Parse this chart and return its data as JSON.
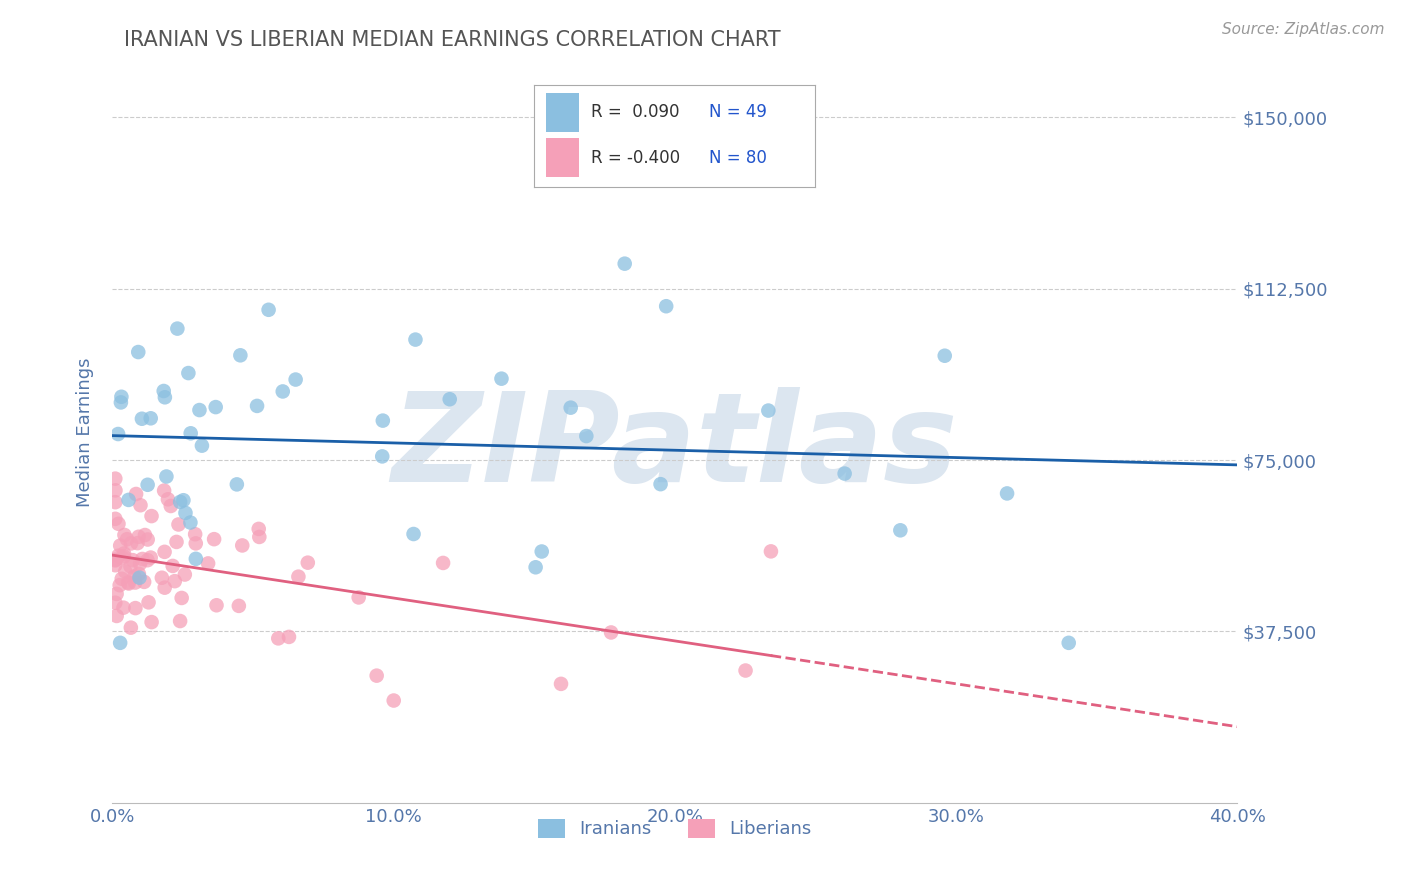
{
  "title": "IRANIAN VS LIBERIAN MEDIAN EARNINGS CORRELATION CHART",
  "source": "Source: ZipAtlas.com",
  "ylabel": "Median Earnings",
  "xlim": [
    0.0,
    0.4
  ],
  "ylim": [
    0,
    162000
  ],
  "yticks": [
    37500,
    75000,
    112500,
    150000
  ],
  "ytick_labels": [
    "$37,500",
    "$75,000",
    "$112,500",
    "$150,000"
  ],
  "xticks": [
    0.0,
    0.1,
    0.2,
    0.3,
    0.4
  ],
  "xtick_labels": [
    "0.0%",
    "10.0%",
    "20.0%",
    "30.0%",
    "40.0%"
  ],
  "iranian_R": 0.09,
  "iranian_N": 49,
  "liberian_R": -0.4,
  "liberian_N": 80,
  "iranian_color": "#8bbfe0",
  "liberian_color": "#f5a0b8",
  "iranian_line_color": "#1a5fa8",
  "liberian_line_color": "#e06080",
  "background_color": "#ffffff",
  "grid_color": "#cccccc",
  "title_color": "#555555",
  "axis_label_color": "#5577aa",
  "watermark_color": "#dce6f0",
  "legend_R_color": "#2255cc",
  "axis_tick_color": "#5577aa"
}
